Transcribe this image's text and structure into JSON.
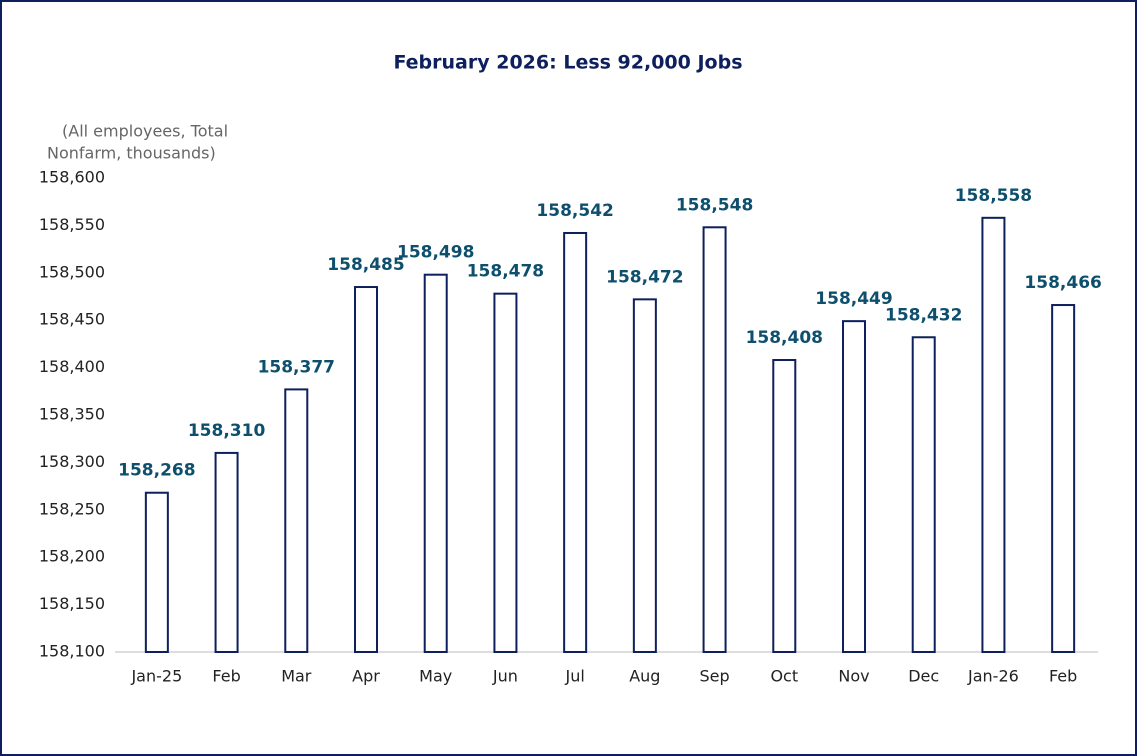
{
  "chart_data": {
    "type": "bar",
    "title": "February 2026: Less 92,000 Jobs",
    "y_label": [
      "(All employees, Total",
      "Nonfarm, thousands)"
    ],
    "categories": [
      "Jan-25",
      "Feb",
      "Mar",
      "Apr",
      "May",
      "Jun",
      "Jul",
      "Aug",
      "Sep",
      "Oct",
      "Nov",
      "Dec",
      "Jan-26",
      "Feb"
    ],
    "values": [
      158268,
      158310,
      158377,
      158485,
      158498,
      158478,
      158542,
      158472,
      158548,
      158408,
      158449,
      158432,
      158558,
      158466
    ],
    "value_labels": [
      "158,268",
      "158,310",
      "158,377",
      "158,485",
      "158,498",
      "158,478",
      "158,542",
      "158,472",
      "158,548",
      "158,408",
      "158,449",
      "158,432",
      "158,558",
      "158,466"
    ],
    "color": "#0d1f5c",
    "ylim": [
      158100,
      158600
    ],
    "yticks": [
      {
        "value": 158100,
        "label": "158,100"
      },
      {
        "value": 158150,
        "label": "158,150"
      },
      {
        "value": 158200,
        "label": "158,200"
      },
      {
        "value": 158250,
        "label": "158,250"
      },
      {
        "value": 158300,
        "label": "158,300"
      },
      {
        "value": 158350,
        "label": "158,350"
      },
      {
        "value": 158400,
        "label": "158,400"
      },
      {
        "value": 158450,
        "label": "158,450"
      },
      {
        "value": 158500,
        "label": "158,500"
      },
      {
        "value": 158550,
        "label": "158,550"
      },
      {
        "value": 158600,
        "label": "158,600"
      }
    ],
    "grid": false
  }
}
